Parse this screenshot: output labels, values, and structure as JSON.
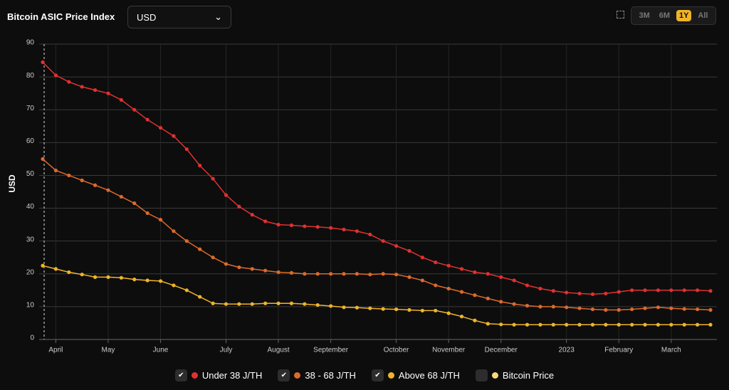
{
  "controls": {
    "title": "Bitcoin ASIC Price Index",
    "currency": "USD",
    "ranges": [
      "3M",
      "6M",
      "1Y",
      "All"
    ],
    "active_range": 2
  },
  "chart_data": {
    "type": "line",
    "ylabel": "USD",
    "categories": [
      null,
      "April",
      null,
      null,
      null,
      "May",
      null,
      null,
      null,
      "June",
      null,
      null,
      null,
      null,
      "July",
      null,
      null,
      null,
      "August",
      null,
      null,
      null,
      "September",
      null,
      null,
      null,
      null,
      "October",
      null,
      null,
      null,
      "November",
      null,
      null,
      null,
      "December",
      null,
      null,
      null,
      null,
      "2023",
      null,
      null,
      null,
      "February",
      null,
      null,
      null,
      "March",
      null,
      null,
      null
    ],
    "ylim": [
      0,
      90
    ],
    "yticks": [
      0,
      10,
      20,
      30,
      40,
      50,
      60,
      70,
      80,
      90
    ],
    "grid": true,
    "series": [
      {
        "name": "Under 38 J/TH",
        "color": "#e03131",
        "visible": true,
        "values": [
          84.5,
          80.5,
          78.5,
          77,
          76,
          75,
          73,
          70,
          67,
          64.5,
          62,
          58,
          53,
          49,
          44,
          40.5,
          38,
          36,
          35,
          34.8,
          34.5,
          34.3,
          34,
          33.5,
          33,
          32,
          30,
          28.5,
          27,
          25,
          23.5,
          22.5,
          21.5,
          20.5,
          20,
          19,
          18,
          16.5,
          15.5,
          14.8,
          14.3,
          14,
          13.8,
          14,
          14.5,
          15,
          15,
          15,
          15,
          15,
          15,
          14.8
        ]
      },
      {
        "name": "38 - 68 J/TH",
        "color": "#dc6a2c",
        "visible": true,
        "values": [
          55,
          51.5,
          50,
          48.5,
          47,
          45.5,
          43.5,
          41.5,
          38.5,
          36.5,
          33,
          30,
          27.5,
          25,
          23,
          22,
          21.5,
          21,
          20.5,
          20.3,
          20,
          20,
          20,
          20,
          20,
          19.8,
          20,
          19.8,
          19,
          18,
          16.5,
          15.5,
          14.5,
          13.5,
          12.5,
          11.5,
          10.8,
          10.3,
          10,
          10,
          9.8,
          9.5,
          9.2,
          9,
          9,
          9.2,
          9.5,
          9.8,
          9.5,
          9.3,
          9.2,
          9
        ]
      },
      {
        "name": "Above 68 J/TH",
        "color": "#f0b429",
        "visible": true,
        "values": [
          22.5,
          21.5,
          20.5,
          19.8,
          19,
          19,
          18.8,
          18.3,
          18,
          17.8,
          16.5,
          15,
          13,
          11,
          10.8,
          10.8,
          10.8,
          11,
          11,
          11,
          10.8,
          10.5,
          10.2,
          9.8,
          9.7,
          9.5,
          9.3,
          9.2,
          9,
          8.8,
          8.8,
          8,
          7,
          5.8,
          4.8,
          4.6,
          4.5,
          4.5,
          4.5,
          4.5,
          4.5,
          4.5,
          4.5,
          4.5,
          4.5,
          4.5,
          4.5,
          4.5,
          4.5,
          4.5,
          4.5,
          4.5
        ]
      },
      {
        "name": "Bitcoin Price",
        "color": "#f7d97a",
        "visible": false
      }
    ]
  }
}
